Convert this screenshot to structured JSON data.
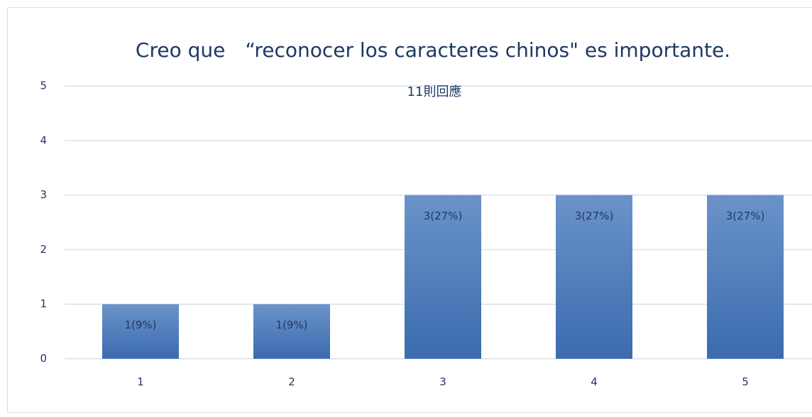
{
  "chart_data": {
    "type": "bar",
    "title": "Creo que　“reconocer los caracteres chinos\" es importante.",
    "subtitle": "11則回應",
    "categories": [
      "1",
      "2",
      "3",
      "4",
      "5"
    ],
    "values": [
      1,
      1,
      3,
      3,
      3
    ],
    "value_labels": [
      "1(9%)",
      "1(9%)",
      "3(27%)",
      "3(27%)",
      "3(27%)"
    ],
    "color": "#4a7bbf",
    "ylim": [
      0,
      5
    ],
    "yticks": [
      0,
      1,
      2,
      3,
      4,
      5
    ],
    "grid": true
  }
}
